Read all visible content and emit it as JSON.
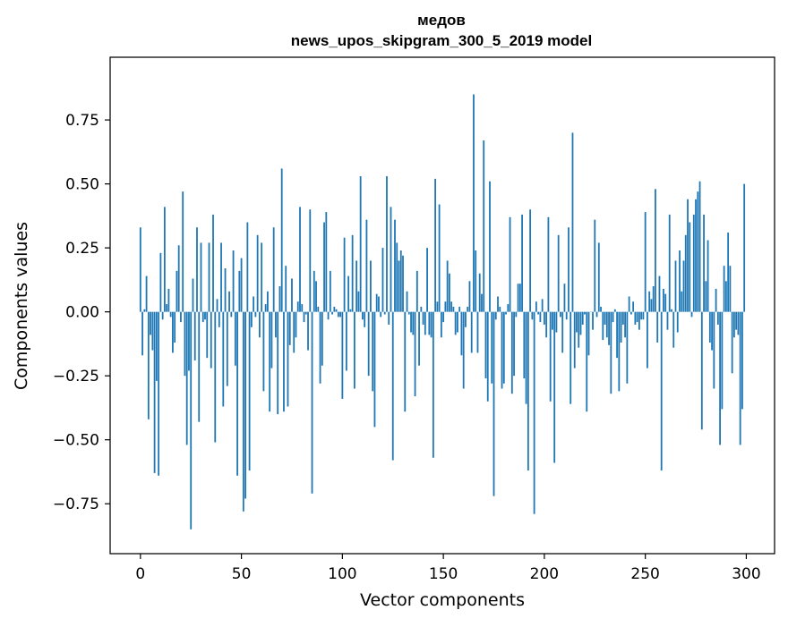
{
  "chart_data": {
    "type": "bar",
    "title": "медов",
    "subtitle": "news_upos_skipgram_300_5_2019 model",
    "xlabel": "Vector components",
    "ylabel": "Components values",
    "xlim": [
      -15,
      314
    ],
    "ylim": [
      -0.945,
      0.995
    ],
    "xticks": [
      0,
      50,
      100,
      150,
      200,
      250,
      300
    ],
    "yticks": [
      -0.75,
      -0.5,
      -0.25,
      0.0,
      0.25,
      0.5,
      0.75
    ],
    "ytick_labels": [
      "−0.75",
      "−0.50",
      "−0.25",
      "0.00",
      "0.25",
      "0.50",
      "0.75"
    ],
    "color": "#1f77b4",
    "grid": false,
    "values": [
      0.33,
      -0.17,
      0.01,
      0.14,
      -0.42,
      -0.09,
      -0.15,
      -0.63,
      -0.27,
      -0.64,
      0.23,
      -0.03,
      0.41,
      0.03,
      0.09,
      -0.02,
      -0.16,
      -0.12,
      0.16,
      0.26,
      -0.04,
      0.47,
      -0.25,
      -0.52,
      -0.23,
      -0.85,
      0.13,
      -0.19,
      0.33,
      -0.43,
      0.27,
      -0.04,
      -0.03,
      -0.18,
      0.27,
      -0.22,
      0.38,
      -0.51,
      0.05,
      -0.06,
      0.27,
      -0.37,
      0.17,
      -0.29,
      0.08,
      -0.02,
      0.24,
      -0.21,
      -0.64,
      0.16,
      0.21,
      -0.78,
      -0.73,
      0.35,
      -0.62,
      -0.06,
      0.06,
      -0.02,
      0.3,
      -0.1,
      0.27,
      -0.31,
      0.03,
      0.08,
      -0.39,
      -0.22,
      0.33,
      -0.1,
      -0.4,
      0.1,
      0.56,
      -0.39,
      0.18,
      -0.37,
      -0.13,
      0.13,
      -0.16,
      -0.1,
      0.04,
      0.41,
      0.03,
      -0.04,
      -0.01,
      -0.15,
      0.4,
      -0.71,
      0.16,
      0.12,
      0.02,
      -0.28,
      -0.21,
      0.35,
      0.39,
      -0.03,
      0.16,
      -0.01,
      0.02,
      0.01,
      -0.02,
      -0.02,
      -0.34,
      0.29,
      -0.23,
      0.14,
      0.01,
      0.3,
      -0.3,
      0.2,
      0.08,
      0.53,
      -0.03,
      -0.06,
      0.36,
      -0.25,
      0.2,
      -0.31,
      -0.45,
      0.07,
      0.06,
      -0.02,
      0.25,
      -0.01,
      0.53,
      -0.05,
      0.41,
      -0.58,
      0.36,
      0.27,
      0.2,
      0.24,
      0.22,
      -0.39,
      0.08,
      -0.01,
      -0.08,
      -0.09,
      -0.33,
      0.16,
      -0.21,
      0.02,
      -0.05,
      -0.09,
      0.25,
      -0.09,
      -0.1,
      -0.57,
      0.52,
      0.04,
      0.42,
      -0.1,
      -0.04,
      0.04,
      0.2,
      0.15,
      0.04,
      0.02,
      -0.09,
      -0.08,
      0.02,
      -0.17,
      -0.3,
      -0.06,
      0.02,
      0.12,
      -0.16,
      0.85,
      0.24,
      -0.16,
      0.15,
      0.07,
      0.67,
      -0.26,
      -0.35,
      0.51,
      -0.28,
      -0.72,
      -0.03,
      0.06,
      0.02,
      -0.3,
      -0.28,
      -0.01,
      0.03,
      0.37,
      -0.32,
      -0.25,
      -0.02,
      0.11,
      0.11,
      0.38,
      -0.26,
      -0.36,
      -0.62,
      0.4,
      -0.03,
      -0.79,
      0.04,
      -0.01,
      -0.04,
      0.05,
      -0.05,
      -0.1,
      0.37,
      -0.35,
      -0.07,
      -0.59,
      -0.08,
      0.3,
      -0.02,
      -0.16,
      0.11,
      -0.03,
      0.33,
      -0.36,
      0.7,
      -0.22,
      -0.08,
      -0.14,
      -0.09,
      -0.05,
      -0.01,
      -0.39,
      -0.17,
      0.0,
      -0.07,
      0.36,
      -0.02,
      0.27,
      0.02,
      -0.11,
      -0.05,
      -0.1,
      -0.13,
      -0.32,
      -0.04,
      0.01,
      -0.18,
      -0.31,
      -0.12,
      -0.05,
      -0.1,
      -0.28,
      0.06,
      -0.01,
      0.04,
      -0.05,
      -0.04,
      -0.07,
      -0.03,
      -0.03,
      0.39,
      -0.22,
      0.08,
      0.05,
      0.1,
      0.48,
      -0.12,
      0.14,
      -0.62,
      0.09,
      0.07,
      -0.07,
      0.38,
      0.01,
      -0.14,
      0.2,
      -0.08,
      0.24,
      0.08,
      0.2,
      0.3,
      0.44,
      0.35,
      -0.02,
      0.38,
      0.44,
      0.47,
      0.51,
      -0.46,
      0.38,
      0.12,
      0.28,
      -0.12,
      -0.15,
      -0.3,
      0.09,
      -0.05,
      -0.52,
      -0.38,
      0.18,
      0.12,
      0.31,
      0.18,
      -0.24,
      -0.1,
      -0.07,
      -0.09,
      -0.52,
      -0.38,
      0.5
    ]
  }
}
